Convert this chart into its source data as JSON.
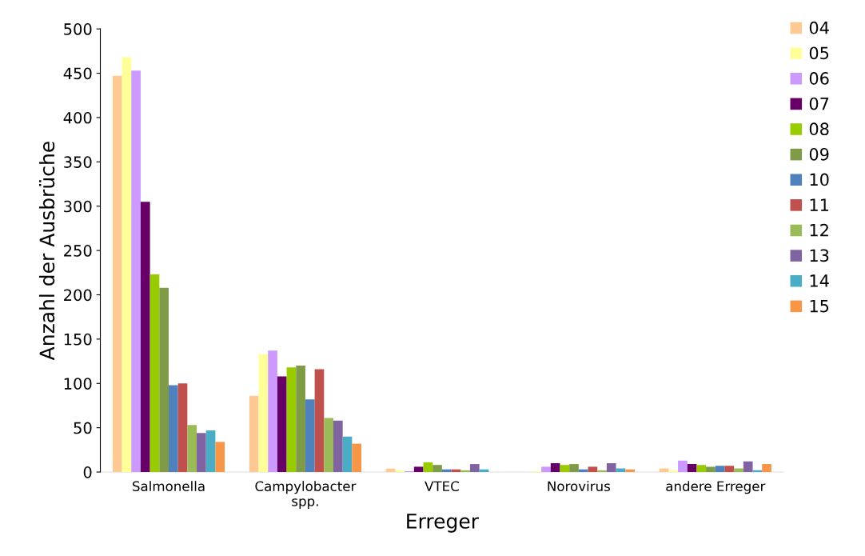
{
  "chart_data": {
    "type": "bar",
    "xlabel": "Erreger",
    "ylabel": "Anzahl der Ausbrüche",
    "categories": [
      "Salmonella",
      "Campylobacter\nspp.",
      "VTEC",
      "Norovirus",
      "andere Erreger"
    ],
    "ylim": [
      0,
      500
    ],
    "yticks": [
      0,
      50,
      100,
      150,
      200,
      250,
      300,
      350,
      400,
      450,
      500
    ],
    "grid": false,
    "legend": "right",
    "series": [
      {
        "name": "04",
        "color": "#ffc993",
        "values": [
          447,
          86,
          4,
          0,
          4
        ]
      },
      {
        "name": "05",
        "color": "#ffff99",
        "values": [
          468,
          133,
          2,
          1,
          2
        ]
      },
      {
        "name": "06",
        "color": "#cc99ff",
        "values": [
          453,
          137,
          1,
          6,
          13
        ]
      },
      {
        "name": "07",
        "color": "#660066",
        "values": [
          305,
          108,
          6,
          10,
          9
        ]
      },
      {
        "name": "08",
        "color": "#99cc00",
        "values": [
          223,
          118,
          11,
          8,
          8
        ]
      },
      {
        "name": "09",
        "color": "#7f9b47",
        "values": [
          208,
          120,
          8,
          9,
          6
        ]
      },
      {
        "name": "10",
        "color": "#4f81bd",
        "values": [
          98,
          82,
          3,
          3,
          7
        ]
      },
      {
        "name": "11",
        "color": "#c0504d",
        "values": [
          100,
          116,
          3,
          6,
          7
        ]
      },
      {
        "name": "12",
        "color": "#9bbb59",
        "values": [
          53,
          61,
          2,
          2,
          4
        ]
      },
      {
        "name": "13",
        "color": "#8064a2",
        "values": [
          44,
          58,
          9,
          10,
          12
        ]
      },
      {
        "name": "14",
        "color": "#4bacc6",
        "values": [
          47,
          40,
          3,
          4,
          2
        ]
      },
      {
        "name": "15",
        "color": "#f79646",
        "values": [
          34,
          32,
          0,
          3,
          9
        ]
      }
    ]
  }
}
